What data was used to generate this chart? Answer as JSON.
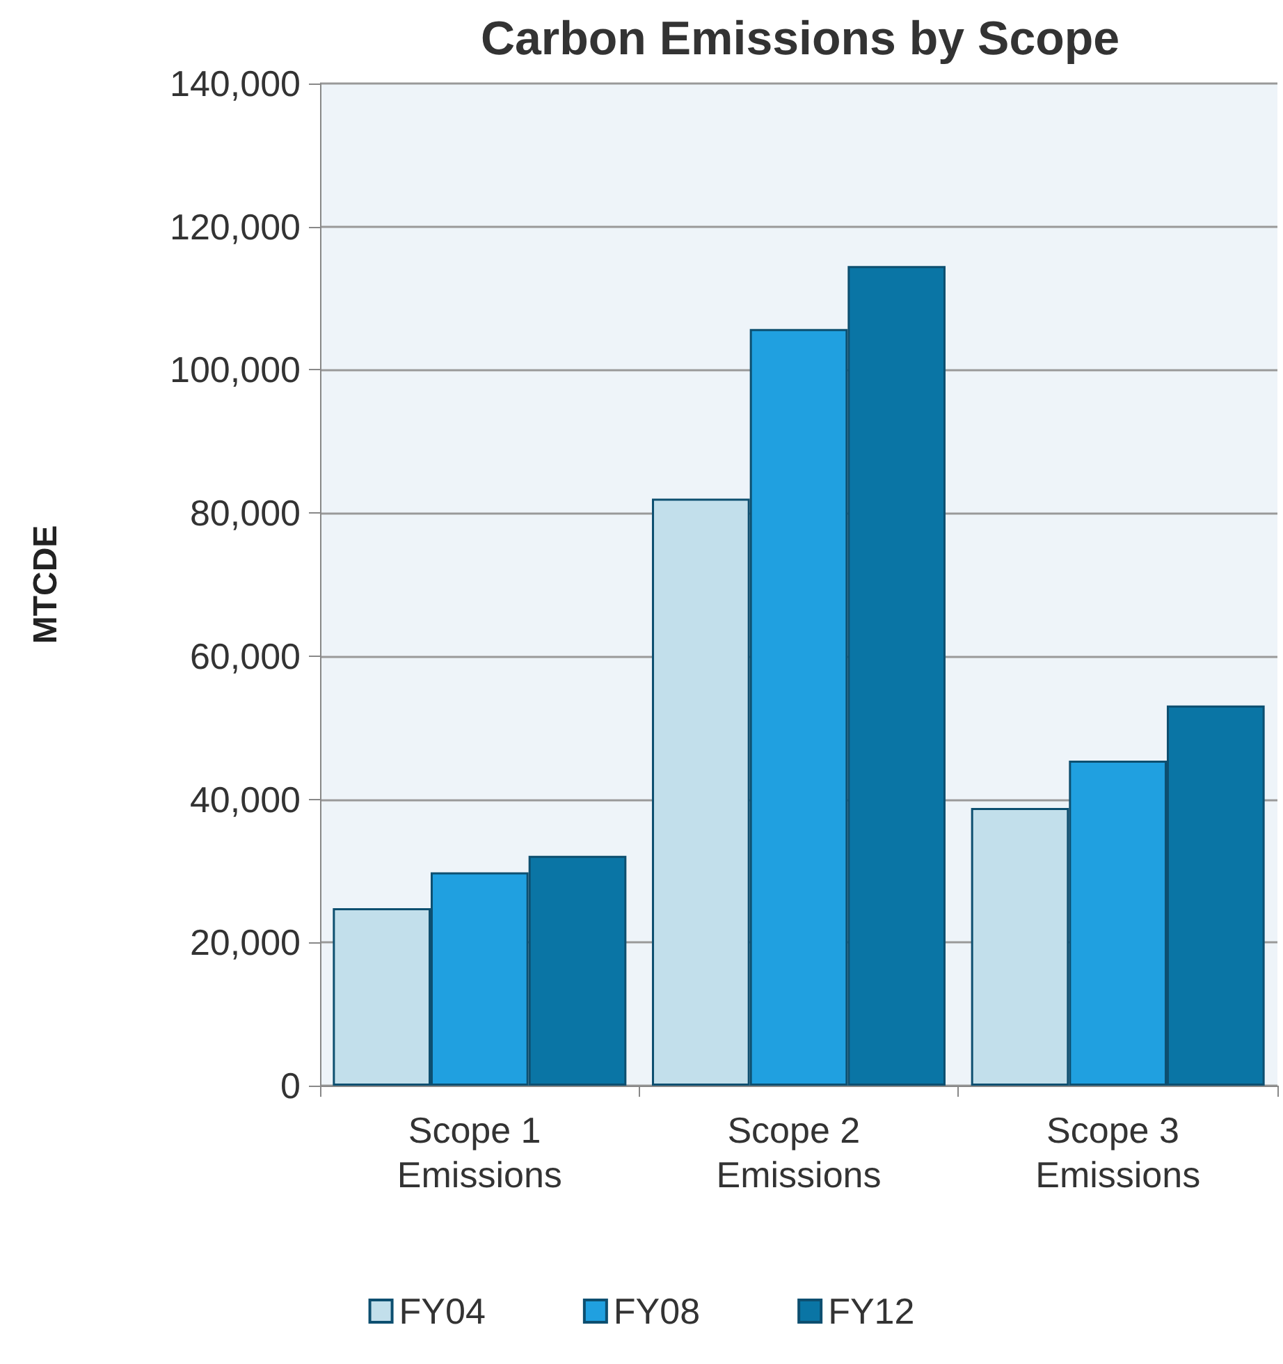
{
  "chart_data": {
    "type": "bar",
    "title": "Carbon Emissions by Scope",
    "ylabel": "MTCDE",
    "categories": [
      "Scope 1 Emissions",
      "Scope 2 Emissions",
      "Scope 3 Emissions"
    ],
    "series": [
      {
        "name": "FY04",
        "color": "#c2dfeb",
        "values": [
          24800,
          82000,
          38800
        ]
      },
      {
        "name": "FY08",
        "color": "#20a0e0",
        "values": [
          29800,
          105700,
          45400
        ]
      },
      {
        "name": "FY12",
        "color": "#0a75a5",
        "values": [
          32100,
          114500,
          53100
        ]
      }
    ],
    "ylim": [
      0,
      140000
    ],
    "yticks": [
      0,
      {
        "value": 20000,
        "label": "20,000"
      },
      {
        "value": 40000,
        "label": "40,000"
      },
      {
        "value": 60000,
        "label": "60,000"
      },
      {
        "value": 80000,
        "label": "80,000"
      },
      {
        "value": 100000,
        "label": "100,000"
      },
      {
        "value": 120000,
        "label": "120,000"
      },
      {
        "value": 140000,
        "label": "140,000"
      }
    ],
    "grid": "y",
    "legend": "bottom"
  }
}
